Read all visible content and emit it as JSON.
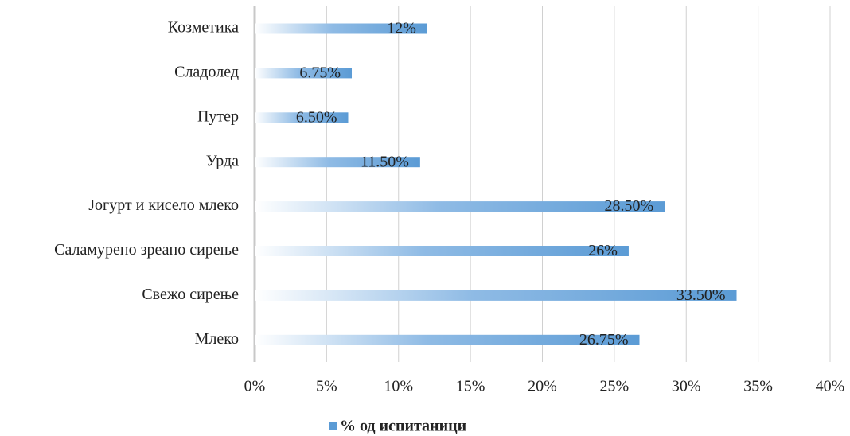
{
  "chart_data": {
    "type": "barh",
    "categories": [
      "Козметика",
      "Сладолед",
      "Путер",
      "Урда",
      "Јогурт и кисело млеко",
      "Саламурено зреано сирење",
      "Свежо сирење",
      "Млеко"
    ],
    "series": [
      {
        "name": "% од испитаници",
        "color": "#5b9bd5",
        "values": [
          12,
          6.75,
          6.5,
          11.5,
          28.5,
          26,
          33.5,
          26.75
        ],
        "value_labels": [
          "12%",
          "6.75%",
          "6.50%",
          "11.50%",
          "28.50%",
          "26%",
          "33.50%",
          "26.75%"
        ]
      }
    ],
    "xlim": [
      0,
      40
    ],
    "xticks": [
      {
        "value": 0,
        "label": "0%"
      },
      {
        "value": 5,
        "label": "5%"
      },
      {
        "value": 10,
        "label": "10%"
      },
      {
        "value": 15,
        "label": "15%"
      },
      {
        "value": 20,
        "label": "20%"
      },
      {
        "value": 25,
        "label": "25%"
      },
      {
        "value": 30,
        "label": "30%"
      },
      {
        "value": 35,
        "label": "35%"
      },
      {
        "value": 40,
        "label": "40%"
      }
    ],
    "grid": true,
    "legend": "bottom"
  }
}
